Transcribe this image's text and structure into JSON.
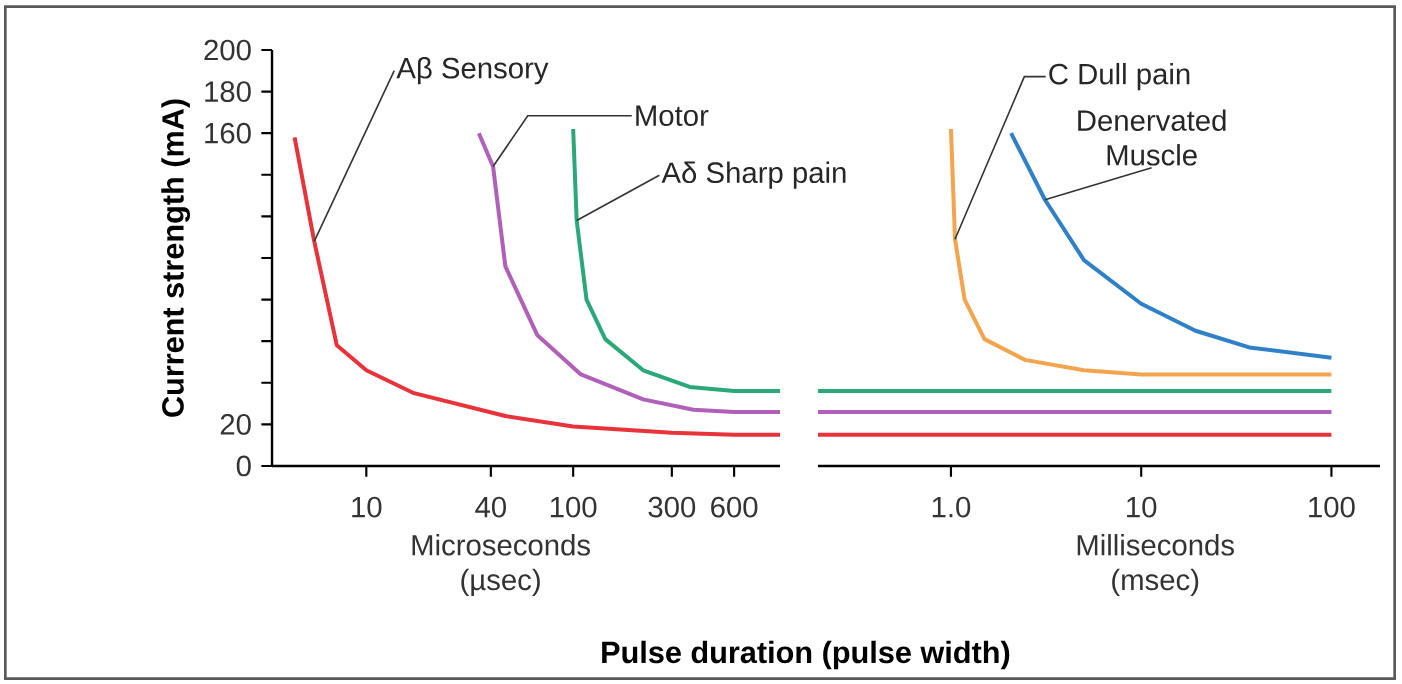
{
  "chart_data": [
    {
      "type": "line",
      "xlabel": "Pulse duration (pulse width)",
      "ylabel": "Current strength (mA)",
      "annotations": [
        "Microseconds (µsec)"
      ],
      "log": "x",
      "xlim": [
        3.5,
        1000
      ],
      "xticks": [
        10,
        40,
        100,
        300,
        600
      ],
      "ylim": [
        0,
        200
      ],
      "yticks": [
        0,
        20,
        {
          "value": 40,
          "label": null
        },
        {
          "value": 60,
          "label": null
        },
        {
          "value": 80,
          "label": null
        },
        {
          "value": 100,
          "label": null
        },
        {
          "value": 120,
          "label": null
        },
        {
          "value": 140,
          "label": null
        },
        160,
        180,
        200
      ],
      "series": [
        {
          "name": "Aβ Sensory",
          "color": "#e8333b",
          "x": [
            4.5,
            5.6,
            7.2,
            10,
            17,
            47,
            100,
            300,
            600,
            1000
          ],
          "values": [
            158,
            108,
            58,
            46,
            35,
            24,
            19,
            16,
            15,
            15
          ]
        },
        {
          "name": "Motor",
          "color": "#b060b8",
          "x": [
            35,
            41,
            47,
            67,
            109,
            218,
            381,
            600,
            1000
          ],
          "values": [
            160,
            144,
            96,
            63,
            44,
            32,
            27,
            26,
            26
          ]
        },
        {
          "name": "Aδ Sharp pain",
          "color": "#2aa878",
          "x": [
            100,
            104,
            116,
            143,
            218,
            366,
            600,
            1000
          ],
          "values": [
            162,
            118,
            80,
            61,
            46,
            38,
            36,
            36
          ]
        }
      ]
    },
    {
      "type": "line",
      "log": "x",
      "xlim": [
        0.2,
        180
      ],
      "xticks": [
        {
          "value": 1,
          "label": "1.0"
        },
        10,
        100
      ],
      "ylim": [
        0,
        200
      ],
      "tick_labels": "x",
      "annotations": [
        "Milliseconds (msec)"
      ],
      "series": [
        {
          "color": "#e8333b",
          "x": [
            0.2,
            100
          ],
          "values": [
            15,
            15
          ]
        },
        {
          "color": "#b060b8",
          "x": [
            0.2,
            100
          ],
          "values": [
            26,
            26
          ]
        },
        {
          "color": "#2aa878",
          "x": [
            0.2,
            100
          ],
          "values": [
            36,
            36
          ]
        },
        {
          "name": "C Dull pain",
          "color": "#f5a44e",
          "x": [
            1,
            1.05,
            1.18,
            1.5,
            2.45,
            5,
            10,
            100
          ],
          "values": [
            162,
            109,
            80,
            61,
            51,
            46,
            44,
            44
          ]
        },
        {
          "name": "Denervated Muscle",
          "color": "#2f80c8",
          "x": [
            2.07,
            3.12,
            5,
            10,
            19.3,
            37,
            100
          ],
          "values": [
            160,
            128,
            99,
            78,
            65,
            57,
            52
          ]
        }
      ]
    }
  ]
}
